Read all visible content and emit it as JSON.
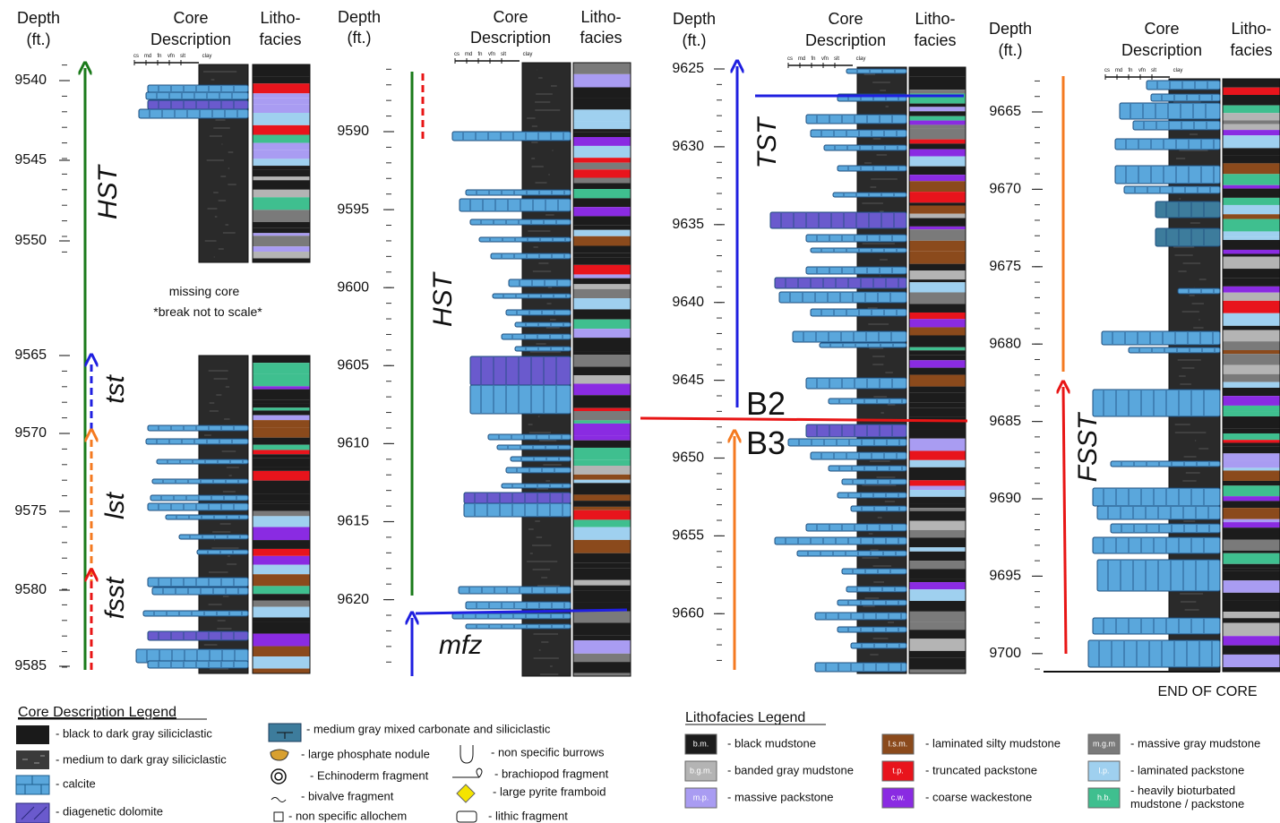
{
  "columns": [
    {
      "depth_header": [
        "Depth",
        "(ft.)"
      ],
      "core_header": [
        "Core",
        "Description"
      ],
      "litho_header": [
        "Litho-",
        "facies"
      ],
      "grain_sizes": [
        "cs",
        "md",
        "fn",
        "vfn",
        "slt",
        "clay"
      ],
      "depth_ticks": [
        9540,
        9545,
        9550,
        9565,
        9570,
        9575,
        9580,
        9585
      ],
      "notes": [
        "missing core",
        "*break not to scale*"
      ],
      "tract_labels": [
        "HST",
        "tst",
        "lst",
        "fsst"
      ]
    },
    {
      "depth_header": [
        "Depth",
        "(ft.)"
      ],
      "core_header": [
        "Core",
        "Description"
      ],
      "litho_header": [
        "Litho-",
        "facies"
      ],
      "grain_sizes": [
        "cs",
        "md",
        "fn",
        "vfn",
        "slt",
        "clay"
      ],
      "depth_ticks": [
        9590,
        9595,
        9600,
        9605,
        9610,
        9615,
        9620
      ],
      "tract_labels": [
        "HST",
        "mfz"
      ]
    },
    {
      "depth_header": [
        "Depth",
        "(ft.)"
      ],
      "core_header": [
        "Core",
        "Description"
      ],
      "litho_header": [
        "Litho-",
        "facies"
      ],
      "grain_sizes": [
        "cs",
        "md",
        "fn",
        "vfn",
        "slt",
        "clay"
      ],
      "depth_ticks": [
        9625,
        9630,
        9635,
        9640,
        9645,
        9650,
        9655,
        9660
      ],
      "tract_labels": [
        "TST",
        "B2",
        "B3"
      ]
    },
    {
      "depth_header": [
        "Depth",
        "(ft.)"
      ],
      "core_header": [
        "Core",
        "Description"
      ],
      "litho_header": [
        "Litho-",
        "facies"
      ],
      "grain_sizes": [
        "cs",
        "md",
        "fn",
        "vfn",
        "slt",
        "clay"
      ],
      "depth_ticks": [
        9665,
        9670,
        9675,
        9680,
        9685,
        9690,
        9695,
        9700
      ],
      "tract_labels": [
        "FSST"
      ],
      "notes": [
        "END OF CORE"
      ]
    }
  ],
  "core_legend": {
    "title": "Core Description Legend",
    "items": [
      "- black to dark gray siliciclastic",
      "- medium to dark gray siliciclastic",
      "- calcite",
      "- diagenetic dolomite",
      "- medium gray mixed carbonate and siliciclastic",
      "- large phosphate nodule",
      "- Echinoderm fragment",
      "- bivalve fragment",
      "- non specific allochem",
      "- non specific burrows",
      "- brachiopod fragment",
      "- large pyrite framboid",
      "- lithic fragment"
    ]
  },
  "litho_legend": {
    "title": "Lithofacies Legend",
    "items": [
      {
        "abbr": "b.m.",
        "label": [
          "- black mudstone"
        ],
        "color": "#1c1c1c"
      },
      {
        "abbr": "b.g.m.",
        "label": [
          "- banded gray mudstone"
        ],
        "color": "#b4b4b4"
      },
      {
        "abbr": "m.p.",
        "label": [
          "- massive packstone"
        ],
        "color": "#a99cf2"
      },
      {
        "abbr": "l.s.m.",
        "label": [
          "- laminated silty mudstone"
        ],
        "color": "#8b4a1c"
      },
      {
        "abbr": "t.p.",
        "label": [
          "- truncated packstone"
        ],
        "color": "#e8141c"
      },
      {
        "abbr": "c.w.",
        "label": [
          "- coarse wackestone"
        ],
        "color": "#8a2be2"
      },
      {
        "abbr": "m.g.m",
        "label": [
          "- massive gray mudstone"
        ],
        "color": "#7a7a7a"
      },
      {
        "abbr": "l.p.",
        "label": [
          "- laminated packstone"
        ],
        "color": "#9fd0ef"
      },
      {
        "abbr": "h.b.",
        "label": [
          "- heavily bioturbated",
          "mudstone / packstone"
        ],
        "color": "#3fbf8f"
      }
    ]
  }
}
